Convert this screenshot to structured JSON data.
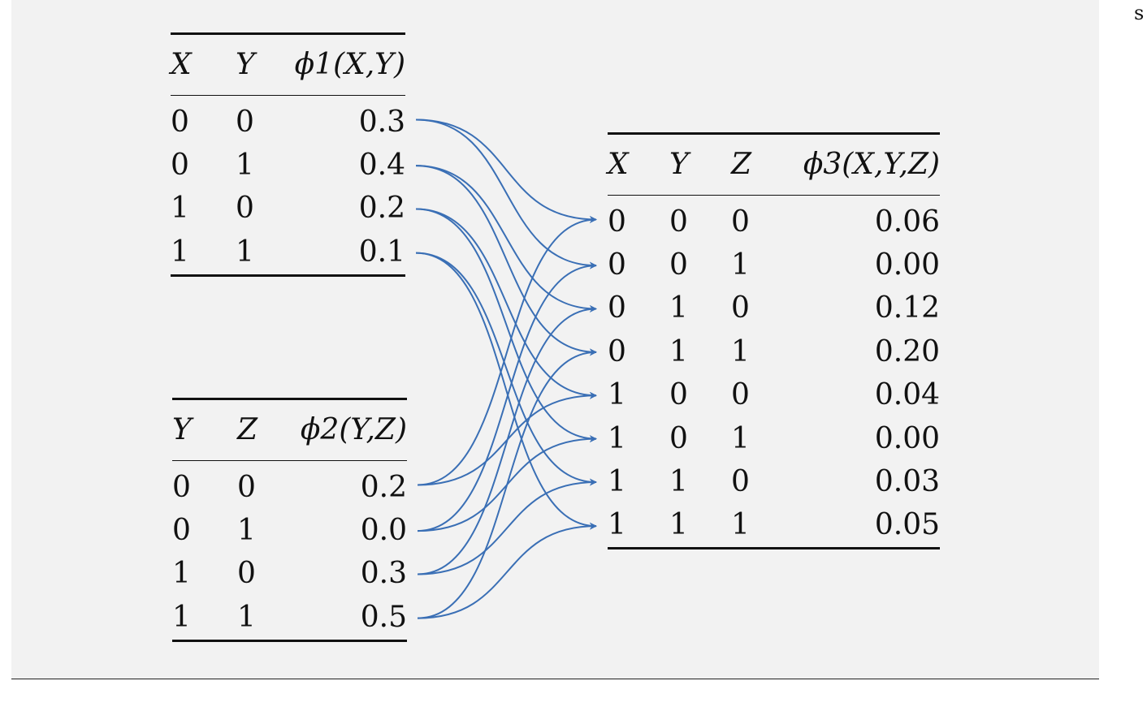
{
  "corner_text": "s",
  "phi1": {
    "headers": [
      "X",
      "Y",
      "ϕ1(X,Y)"
    ],
    "rows": [
      [
        "0",
        "0",
        "0.3"
      ],
      [
        "0",
        "1",
        "0.4"
      ],
      [
        "1",
        "0",
        "0.2"
      ],
      [
        "1",
        "1",
        "0.1"
      ]
    ]
  },
  "phi2": {
    "headers": [
      "Y",
      "Z",
      "ϕ2(Y,Z)"
    ],
    "rows": [
      [
        "0",
        "0",
        "0.2"
      ],
      [
        "0",
        "1",
        "0.0"
      ],
      [
        "1",
        "0",
        "0.3"
      ],
      [
        "1",
        "1",
        "0.5"
      ]
    ]
  },
  "phi3": {
    "headers": [
      "X",
      "Y",
      "Z",
      "ϕ3(X,Y,Z)"
    ],
    "rows": [
      [
        "0",
        "0",
        "0",
        "0.06"
      ],
      [
        "0",
        "0",
        "1",
        "0.00"
      ],
      [
        "0",
        "1",
        "0",
        "0.12"
      ],
      [
        "0",
        "1",
        "1",
        "0.20"
      ],
      [
        "1",
        "0",
        "0",
        "0.04"
      ],
      [
        "1",
        "0",
        "1",
        "0.00"
      ],
      [
        "1",
        "1",
        "0",
        "0.03"
      ],
      [
        "1",
        "1",
        "1",
        "0.05"
      ]
    ]
  },
  "colors": {
    "arrow": "#3a6fb5",
    "rule": "#111111",
    "panel": "#f2f2f2"
  }
}
